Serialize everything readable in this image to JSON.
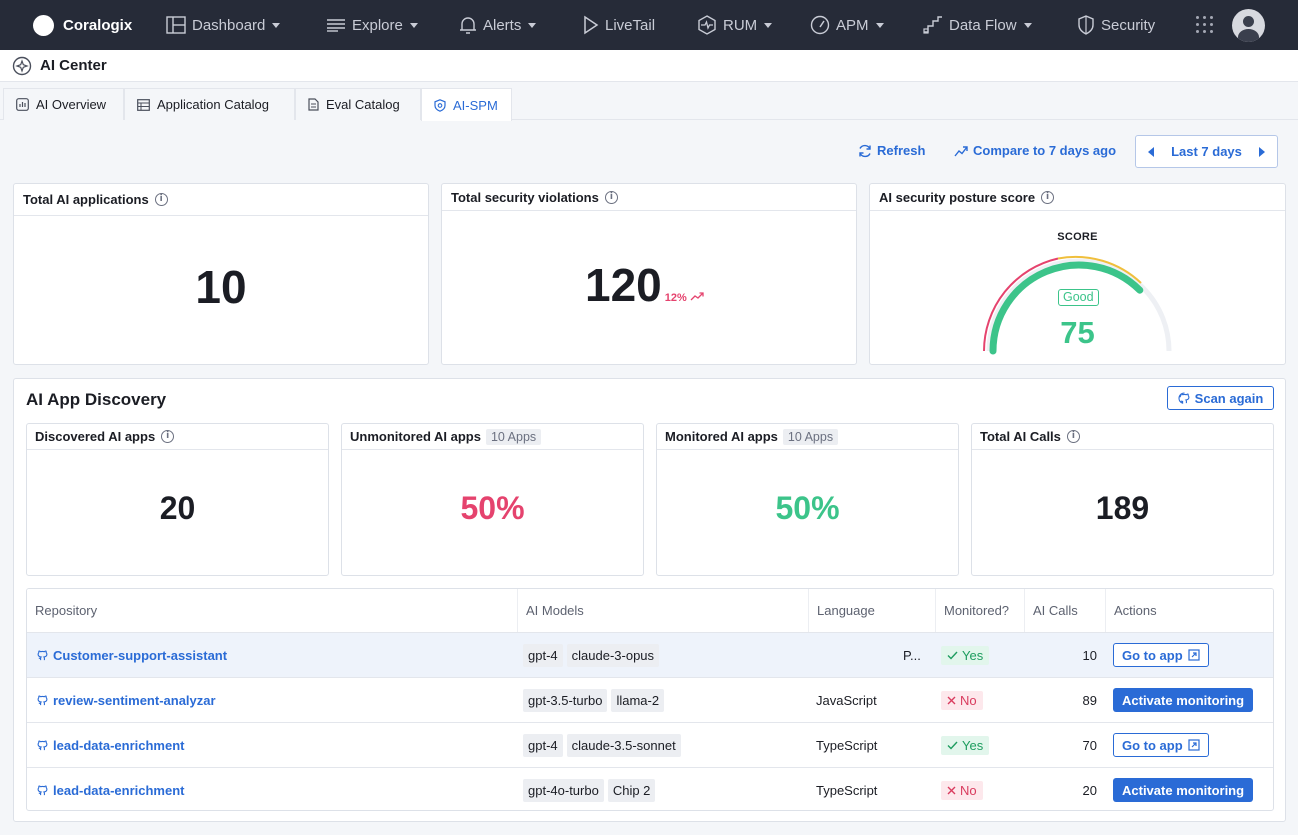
{
  "nav": {
    "brand": "Coralogix",
    "items": [
      {
        "label": "Dashboard",
        "icon": "dashboard-icon",
        "caret": true
      },
      {
        "label": "Explore",
        "icon": "explore-icon",
        "caret": true
      },
      {
        "label": "Alerts",
        "icon": "bell-icon",
        "caret": true
      },
      {
        "label": "LiveTail",
        "icon": "play-icon",
        "caret": false
      },
      {
        "label": "RUM",
        "icon": "rum-icon",
        "caret": true
      },
      {
        "label": "APM",
        "icon": "gauge-icon",
        "caret": true
      },
      {
        "label": "Data Flow",
        "icon": "data-flow-icon",
        "caret": true
      },
      {
        "label": "Security",
        "icon": "shield-icon",
        "caret": false
      }
    ]
  },
  "page": {
    "title": "AI Center"
  },
  "tabs": [
    {
      "label": "AI Overview",
      "icon": "chart-icon"
    },
    {
      "label": "Application Catalog",
      "icon": "catalog-icon"
    },
    {
      "label": "Eval Catalog",
      "icon": "document-icon"
    },
    {
      "label": "AI-SPM",
      "icon": "shield-icon",
      "active": true
    }
  ],
  "toolbar": {
    "refresh": "Refresh",
    "compare": "Compare to 7 days ago",
    "range": "Last 7 days"
  },
  "kpis": {
    "total_apps": {
      "label": "Total AI applications",
      "value": "10"
    },
    "violations": {
      "label": "Total security violations",
      "value": "120",
      "delta": "12%"
    },
    "posture": {
      "label": "AI security posture score",
      "caption": "SCORE",
      "status": "Good",
      "score": 75,
      "score_max": 100
    }
  },
  "discovery": {
    "title": "AI App Discovery",
    "scan_label": "Scan again",
    "cards": {
      "discovered": {
        "label": "Discovered AI apps",
        "value": "20"
      },
      "unmonitored": {
        "label": "Unmonitored AI apps",
        "count": "10 Apps",
        "value": "50%"
      },
      "monitored": {
        "label": "Monitored AI apps",
        "count": "10 Apps",
        "value": "50%"
      },
      "calls": {
        "label": "Total AI Calls",
        "value": "189"
      }
    },
    "table": {
      "headers": {
        "repository": "Repository",
        "models": "AI Models",
        "language": "Language",
        "monitored": "Monitored?",
        "calls": "AI Calls",
        "actions": "Actions"
      },
      "rows": [
        {
          "repo": "Customer-support-assistant",
          "models": [
            "gpt-4",
            "claude-3-opus"
          ],
          "language": "P...",
          "monitored": "Yes",
          "calls": "10",
          "action": "Go to app"
        },
        {
          "repo": "review-sentiment-analyzar",
          "models": [
            "gpt-3.5-turbo",
            "llama-2"
          ],
          "language": "JavaScript",
          "monitored": "No",
          "calls": "89",
          "action": "Activate monitoring"
        },
        {
          "repo": "lead-data-enrichment",
          "models": [
            "gpt-4",
            "claude-3.5-sonnet"
          ],
          "language": "TypeScript",
          "monitored": "Yes",
          "calls": "70",
          "action": "Go to app"
        },
        {
          "repo": "lead-data-enrichment",
          "models": [
            "gpt-4o-turbo",
            "Chip 2"
          ],
          "language": "TypeScript",
          "monitored": "No",
          "calls": "20",
          "action": "Activate monitoring"
        }
      ]
    }
  },
  "colors": {
    "accent": "#2a6bd6",
    "good": "#3cc48a",
    "bad": "#e5436e",
    "nav_bg": "#262b38"
  }
}
